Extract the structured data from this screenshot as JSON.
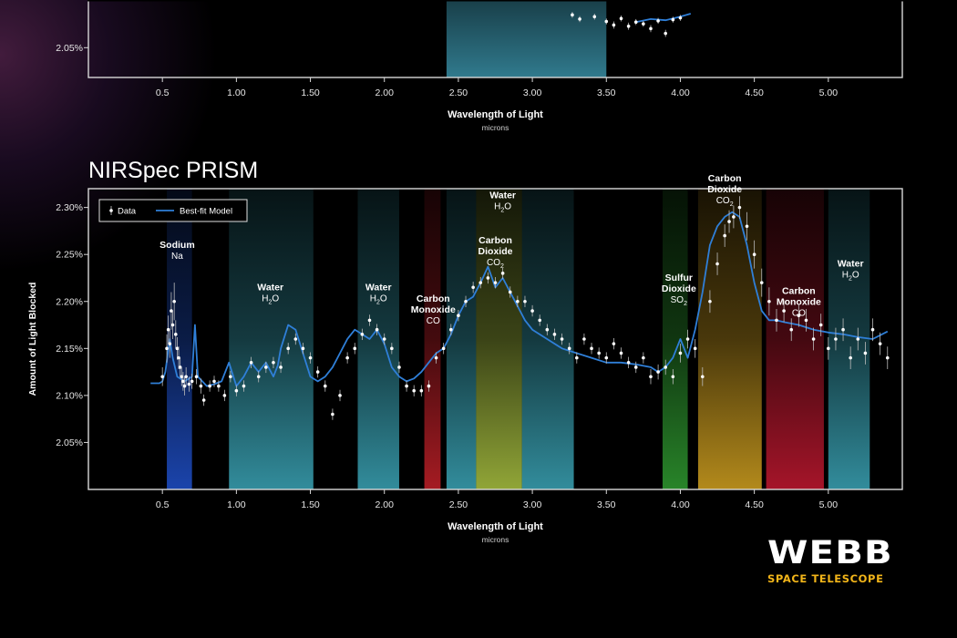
{
  "colors": {
    "background": "#000000",
    "axis": "#d8d8d8",
    "model_line": "#2f7fd8",
    "data_point": "#ffffff",
    "logo_sub": "#f2b519"
  },
  "logo": {
    "name": "WEBB",
    "subtitle": "SPACE TELESCOPE"
  },
  "chart_data": [
    {
      "type": "scatter",
      "title": "",
      "xlabel": "Wavelength of Light",
      "xunit": "microns",
      "ylabel": "",
      "xlim": [
        0.0,
        5.5
      ],
      "ylim": [
        2.0,
        2.13
      ],
      "xticks": [
        {
          "v": 0.5,
          "label": "0.5"
        },
        {
          "v": 1.0,
          "label": "1.00"
        },
        {
          "v": 1.5,
          "label": "1.50"
        },
        {
          "v": 2.0,
          "label": "2.00"
        },
        {
          "v": 2.5,
          "label": "2.50"
        },
        {
          "v": 3.0,
          "label": "3.00"
        },
        {
          "v": 3.5,
          "label": "3.50"
        },
        {
          "v": 4.0,
          "label": "4.00"
        },
        {
          "v": 4.5,
          "label": "4.50"
        },
        {
          "v": 5.0,
          "label": "5.00"
        }
      ],
      "yticks": [
        {
          "v": 2.05,
          "label": "2.05%"
        }
      ],
      "bands": [
        {
          "from": 2.42,
          "to": 3.5,
          "color": "#3f9fb8"
        }
      ],
      "series": [
        {
          "kind": "model",
          "x": [
            3.7,
            3.8,
            3.9,
            4.0,
            4.07
          ],
          "y": [
            2.093,
            2.098,
            2.096,
            2.102,
            2.107
          ]
        },
        {
          "kind": "data",
          "x": [
            3.27,
            3.32,
            3.42,
            3.5,
            3.55,
            3.6,
            3.65,
            3.7,
            3.75,
            3.8,
            3.85,
            3.9,
            3.95,
            4.0
          ],
          "y": [
            2.105,
            2.098,
            2.102,
            2.094,
            2.088,
            2.099,
            2.086,
            2.093,
            2.09,
            2.082,
            2.095,
            2.074,
            2.097,
            2.1
          ],
          "err": [
            0.005,
            0.005,
            0.005,
            0.005,
            0.006,
            0.005,
            0.006,
            0.005,
            0.005,
            0.006,
            0.005,
            0.006,
            0.005,
            0.005
          ]
        }
      ]
    },
    {
      "type": "scatter",
      "title": "NIRSpec PRISM",
      "xlabel": "Wavelength of Light",
      "xunit": "microns",
      "ylabel": "Amount of Light Blocked",
      "xlim": [
        0.0,
        5.5
      ],
      "ylim": [
        2.0,
        2.32
      ],
      "xticks": [
        {
          "v": 0.5,
          "label": "0.5"
        },
        {
          "v": 1.0,
          "label": "1.00"
        },
        {
          "v": 1.5,
          "label": "1.50"
        },
        {
          "v": 2.0,
          "label": "2.00"
        },
        {
          "v": 2.5,
          "label": "2.50"
        },
        {
          "v": 3.0,
          "label": "3.00"
        },
        {
          "v": 3.5,
          "label": "3.50"
        },
        {
          "v": 4.0,
          "label": "4.00"
        },
        {
          "v": 4.5,
          "label": "4.50"
        },
        {
          "v": 5.0,
          "label": "5.00"
        }
      ],
      "yticks": [
        {
          "v": 2.05,
          "label": "2.05%"
        },
        {
          "v": 2.1,
          "label": "2.10%"
        },
        {
          "v": 2.15,
          "label": "2.15%"
        },
        {
          "v": 2.2,
          "label": "2.20%"
        },
        {
          "v": 2.25,
          "label": "2.25%"
        },
        {
          "v": 2.3,
          "label": "2.30%"
        }
      ],
      "legend": {
        "placement": "top-left",
        "data_label": "Data",
        "model_label": "Best-fit Model"
      },
      "bands": [
        {
          "from": 0.53,
          "to": 0.7,
          "color": "#1f4fc8"
        },
        {
          "from": 0.95,
          "to": 1.52,
          "color": "#3aa3b5"
        },
        {
          "from": 1.82,
          "to": 2.1,
          "color": "#3aa3b5"
        },
        {
          "from": 2.27,
          "to": 2.38,
          "color": "#c02028"
        },
        {
          "from": 2.42,
          "to": 2.62,
          "color": "#3aa3b5"
        },
        {
          "from": 2.62,
          "to": 2.93,
          "color": "#a8c040"
        },
        {
          "from": 2.93,
          "to": 3.28,
          "color": "#3aa3b5"
        },
        {
          "from": 3.88,
          "to": 4.05,
          "color": "#2f9a30"
        },
        {
          "from": 4.12,
          "to": 4.55,
          "color": "#d0a020"
        },
        {
          "from": 4.58,
          "to": 4.97,
          "color": "#c01830"
        },
        {
          "from": 5.0,
          "to": 5.28,
          "color": "#3aa3b5"
        }
      ],
      "annotations": [
        {
          "x": 0.6,
          "y": 2.257,
          "name": "Sodium",
          "formula": "Na"
        },
        {
          "x": 1.23,
          "y": 2.212,
          "name": "Water",
          "formula": "H2O"
        },
        {
          "x": 1.96,
          "y": 2.212,
          "name": "Water",
          "formula": "H2O"
        },
        {
          "x": 2.33,
          "y": 2.2,
          "name": "Carbon\nMonoxide",
          "formula": "CO"
        },
        {
          "x": 2.8,
          "y": 2.31,
          "name": "Water",
          "formula": "H2O"
        },
        {
          "x": 2.75,
          "y": 2.262,
          "name": "Carbon\nDioxide",
          "formula": "CO2"
        },
        {
          "x": 3.99,
          "y": 2.222,
          "name": "Sulfur\nDioxide",
          "formula": "SO2"
        },
        {
          "x": 4.3,
          "y": 2.328,
          "name": "Carbon\nDioxide",
          "formula": "CO2"
        },
        {
          "x": 4.8,
          "y": 2.208,
          "name": "Carbon\nMonoxide",
          "formula": "CO"
        },
        {
          "x": 5.15,
          "y": 2.237,
          "name": "Water",
          "formula": "H2O"
        }
      ],
      "series": [
        {
          "kind": "model",
          "name": "Best-fit Model",
          "x": [
            0.42,
            0.48,
            0.5,
            0.52,
            0.55,
            0.57,
            0.6,
            0.65,
            0.7,
            0.72,
            0.74,
            0.77,
            0.8,
            0.85,
            0.9,
            0.95,
            1.0,
            1.05,
            1.1,
            1.15,
            1.2,
            1.25,
            1.28,
            1.3,
            1.35,
            1.4,
            1.45,
            1.5,
            1.55,
            1.6,
            1.65,
            1.7,
            1.75,
            1.8,
            1.85,
            1.9,
            1.95,
            2.0,
            2.05,
            2.1,
            2.15,
            2.2,
            2.25,
            2.3,
            2.35,
            2.4,
            2.45,
            2.5,
            2.55,
            2.6,
            2.65,
            2.7,
            2.75,
            2.8,
            2.85,
            2.9,
            2.95,
            3.0,
            3.1,
            3.2,
            3.3,
            3.4,
            3.5,
            3.6,
            3.7,
            3.8,
            3.85,
            3.9,
            3.95,
            4.0,
            4.05,
            4.1,
            4.15,
            4.2,
            4.25,
            4.3,
            4.35,
            4.4,
            4.45,
            4.5,
            4.55,
            4.6,
            4.65,
            4.7,
            4.8,
            4.9,
            5.0,
            5.1,
            5.2,
            5.3,
            5.4
          ],
          "y": [
            2.113,
            2.113,
            2.115,
            2.125,
            2.16,
            2.14,
            2.12,
            2.115,
            2.12,
            2.175,
            2.12,
            2.115,
            2.11,
            2.112,
            2.115,
            2.135,
            2.11,
            2.12,
            2.135,
            2.125,
            2.135,
            2.12,
            2.132,
            2.15,
            2.175,
            2.17,
            2.145,
            2.12,
            2.115,
            2.12,
            2.13,
            2.145,
            2.16,
            2.17,
            2.165,
            2.16,
            2.17,
            2.155,
            2.13,
            2.12,
            2.115,
            2.118,
            2.125,
            2.135,
            2.145,
            2.15,
            2.165,
            2.185,
            2.2,
            2.205,
            2.22,
            2.237,
            2.215,
            2.225,
            2.21,
            2.195,
            2.18,
            2.17,
            2.16,
            2.15,
            2.145,
            2.14,
            2.135,
            2.135,
            2.133,
            2.13,
            2.125,
            2.13,
            2.14,
            2.16,
            2.14,
            2.17,
            2.21,
            2.26,
            2.28,
            2.29,
            2.295,
            2.29,
            2.26,
            2.22,
            2.19,
            2.18,
            2.18,
            2.178,
            2.175,
            2.17,
            2.167,
            2.165,
            2.162,
            2.16,
            2.168
          ]
        },
        {
          "kind": "data",
          "name": "Data",
          "x": [
            0.5,
            0.53,
            0.54,
            0.55,
            0.56,
            0.57,
            0.58,
            0.59,
            0.6,
            0.61,
            0.62,
            0.63,
            0.64,
            0.65,
            0.66,
            0.68,
            0.7,
            0.73,
            0.76,
            0.78,
            0.82,
            0.85,
            0.88,
            0.92,
            0.96,
            1.0,
            1.05,
            1.1,
            1.15,
            1.2,
            1.25,
            1.3,
            1.35,
            1.4,
            1.45,
            1.5,
            1.55,
            1.6,
            1.65,
            1.7,
            1.75,
            1.8,
            1.85,
            1.9,
            1.95,
            2.0,
            2.05,
            2.1,
            2.15,
            2.2,
            2.25,
            2.3,
            2.35,
            2.4,
            2.45,
            2.5,
            2.55,
            2.6,
            2.65,
            2.7,
            2.75,
            2.8,
            2.85,
            2.9,
            2.95,
            3.0,
            3.05,
            3.1,
            3.15,
            3.2,
            3.25,
            3.3,
            3.35,
            3.4,
            3.45,
            3.5,
            3.55,
            3.6,
            3.65,
            3.7,
            3.75,
            3.8,
            3.85,
            3.9,
            3.95,
            4.0,
            4.05,
            4.1,
            4.15,
            4.2,
            4.25,
            4.3,
            4.33,
            4.36,
            4.4,
            4.45,
            4.5,
            4.55,
            4.6,
            4.65,
            4.7,
            4.75,
            4.8,
            4.85,
            4.9,
            4.95,
            5.0,
            5.05,
            5.1,
            5.15,
            5.2,
            5.25,
            5.3,
            5.35,
            5.4
          ],
          "y": [
            2.12,
            2.15,
            2.17,
            2.155,
            2.19,
            2.175,
            2.2,
            2.165,
            2.15,
            2.14,
            2.13,
            2.12,
            2.115,
            2.11,
            2.12,
            2.112,
            2.115,
            2.12,
            2.11,
            2.095,
            2.11,
            2.115,
            2.11,
            2.1,
            2.12,
            2.105,
            2.11,
            2.135,
            2.12,
            2.13,
            2.135,
            2.13,
            2.15,
            2.16,
            2.15,
            2.14,
            2.125,
            2.11,
            2.08,
            2.1,
            2.14,
            2.15,
            2.165,
            2.18,
            2.17,
            2.16,
            2.15,
            2.13,
            2.11,
            2.105,
            2.105,
            2.11,
            2.14,
            2.15,
            2.17,
            2.185,
            2.2,
            2.215,
            2.22,
            2.225,
            2.22,
            2.23,
            2.21,
            2.2,
            2.2,
            2.19,
            2.18,
            2.17,
            2.165,
            2.16,
            2.15,
            2.14,
            2.16,
            2.15,
            2.145,
            2.14,
            2.155,
            2.145,
            2.135,
            2.13,
            2.14,
            2.12,
            2.125,
            2.13,
            2.12,
            2.145,
            2.16,
            2.15,
            2.12,
            2.2,
            2.24,
            2.27,
            2.285,
            2.29,
            2.3,
            2.28,
            2.25,
            2.22,
            2.2,
            2.18,
            2.19,
            2.17,
            2.185,
            2.18,
            2.16,
            2.175,
            2.15,
            2.16,
            2.17,
            2.14,
            2.16,
            2.145,
            2.17,
            2.155,
            2.14
          ],
          "err": [
            0.01,
            0.015,
            0.015,
            0.015,
            0.02,
            0.015,
            0.02,
            0.015,
            0.012,
            0.012,
            0.01,
            0.01,
            0.01,
            0.01,
            0.01,
            0.008,
            0.008,
            0.008,
            0.008,
            0.006,
            0.006,
            0.006,
            0.006,
            0.006,
            0.006,
            0.006,
            0.006,
            0.006,
            0.006,
            0.006,
            0.006,
            0.006,
            0.006,
            0.006,
            0.006,
            0.006,
            0.006,
            0.006,
            0.006,
            0.006,
            0.006,
            0.006,
            0.006,
            0.006,
            0.006,
            0.006,
            0.006,
            0.006,
            0.006,
            0.006,
            0.006,
            0.006,
            0.006,
            0.006,
            0.006,
            0.006,
            0.006,
            0.006,
            0.006,
            0.006,
            0.006,
            0.006,
            0.006,
            0.006,
            0.006,
            0.006,
            0.006,
            0.006,
            0.006,
            0.006,
            0.006,
            0.006,
            0.006,
            0.006,
            0.006,
            0.006,
            0.006,
            0.006,
            0.006,
            0.006,
            0.006,
            0.008,
            0.008,
            0.008,
            0.008,
            0.01,
            0.01,
            0.01,
            0.01,
            0.012,
            0.012,
            0.012,
            0.012,
            0.012,
            0.012,
            0.015,
            0.015,
            0.015,
            0.015,
            0.012,
            0.012,
            0.012,
            0.012,
            0.012,
            0.012,
            0.012,
            0.012,
            0.012,
            0.012,
            0.012,
            0.012,
            0.012,
            0.012,
            0.012,
            0.012
          ]
        }
      ]
    }
  ]
}
